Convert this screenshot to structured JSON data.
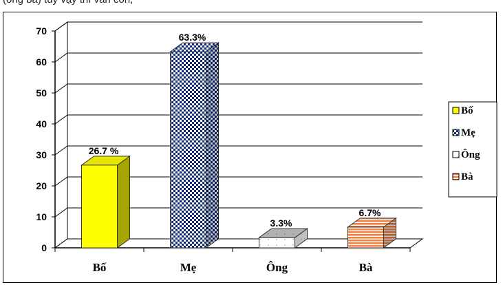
{
  "top_caption": "(ông bà) tuy vậy thì vẫn còn,",
  "chart_data": {
    "type": "bar",
    "categories": [
      "Bố",
      "Mẹ",
      "Ông",
      "Bà"
    ],
    "values": [
      26.7,
      63.3,
      3.3,
      6.7
    ],
    "data_labels": [
      "26.7 %",
      "63.3%",
      "3.3%",
      "6.7%"
    ],
    "ylim": [
      0,
      70
    ],
    "yticks": [
      "0",
      "10",
      "20",
      "30",
      "40",
      "50",
      "60",
      "70"
    ],
    "grid": true,
    "legend_position": "right",
    "legend": [
      {
        "label": "Bố",
        "pattern": "solid",
        "color": "#ffff00",
        "side_color": "#a6a600"
      },
      {
        "label": "Mẹ",
        "pattern": "checker",
        "color": "#0d2a7a",
        "side_color": "#0d2a7a"
      },
      {
        "label": "Ông",
        "pattern": "dots",
        "color": "#ffffff",
        "side_color": "#9a9a9a"
      },
      {
        "label": "Bà",
        "pattern": "stripes",
        "color": "#f08040",
        "side_color": "#b05020"
      }
    ]
  }
}
